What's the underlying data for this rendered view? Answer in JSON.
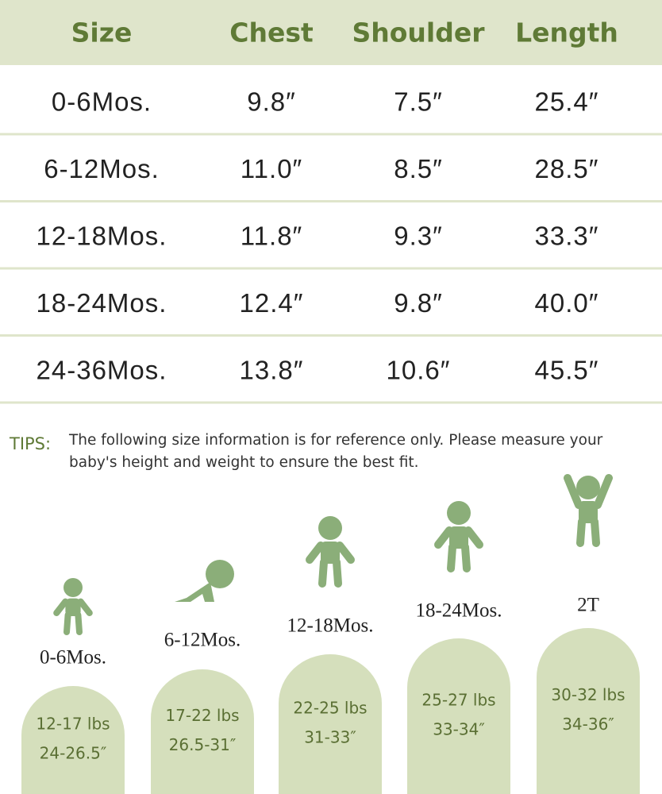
{
  "table": {
    "columns": [
      "Size",
      "Chest",
      "Shoulder",
      "Length"
    ],
    "rows": [
      [
        "0-6Mos.",
        "9.8″",
        "7.5″",
        "25.4″"
      ],
      [
        "6-12Mos.",
        "11.0″",
        "8.5″",
        "28.5″"
      ],
      [
        "12-18Mos.",
        "11.8″",
        "9.3″",
        "33.3″"
      ],
      [
        "18-24Mos.",
        "12.4″",
        "9.8″",
        "40.0″"
      ],
      [
        "24-36Mos.",
        "13.8″",
        "10.6″",
        "45.5″"
      ]
    ]
  },
  "tips": {
    "label": "TIPS:",
    "lines": [
      "The following size information is for reference only. Please measure your",
      "baby's height and weight to ensure the best fit."
    ]
  },
  "sizes": [
    {
      "label": "0-6Mos.",
      "weight": "12-17 lbs",
      "height": "24-26.5″"
    },
    {
      "label": "6-12Mos.",
      "weight": "17-22 lbs",
      "height": "26.5-31″"
    },
    {
      "label": "12-18Mos.",
      "weight": "22-25 lbs",
      "height": "31-33″"
    },
    {
      "label": "18-24Mos.",
      "weight": "25-27 lbs",
      "height": "33-34″"
    },
    {
      "label": "2T",
      "weight": "30-32 lbs",
      "height": "34-36″"
    }
  ]
}
